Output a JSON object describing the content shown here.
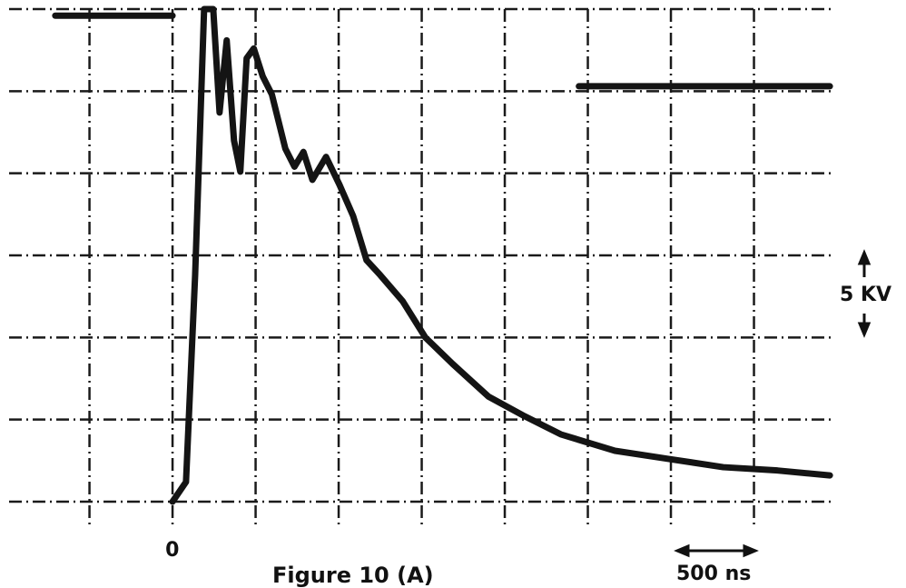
{
  "chart_data": {
    "type": "line",
    "annotations": [
      "5 KV",
      "500 ns"
    ],
    "caption": "Figure 10 (A)",
    "xlim": [
      -984,
      3978
    ],
    "ylim": [
      0,
      30
    ],
    "xticks": [
      0
    ],
    "xgrid": [
      -500,
      0,
      500,
      1000,
      1500,
      2000,
      2500,
      3000,
      3500
    ],
    "ygrid": [
      0,
      5,
      10,
      15,
      20,
      25,
      30
    ],
    "grid": true,
    "series": [
      {
        "color": "#141414",
        "x": [
          0,
          81,
          136,
          190,
          245,
          283,
          326,
          370,
          408,
          446,
          489,
          543,
          598,
          679,
          734,
          788,
          842,
          924,
          1005,
          1087,
          1168,
          1250,
          1386,
          1522,
          1685,
          1902,
          2120,
          2337,
          2663,
          2989,
          3315,
          3641,
          3957
        ],
        "values": [
          0,
          1.2,
          13.8,
          30,
          30,
          23.7,
          28.1,
          22,
          20.1,
          27,
          27.6,
          25.9,
          24.8,
          21.5,
          20.4,
          21.3,
          19.6,
          21,
          19.3,
          17.4,
          14.7,
          13.8,
          12.2,
          10,
          8.4,
          6.4,
          5.2,
          4.1,
          3.1,
          2.6,
          2.1,
          1.9,
          1.6
        ]
      },
      {
        "color": "#141414",
        "x": [
          2446,
          3957
        ],
        "values": [
          25.3,
          25.3
        ]
      },
      {
        "color": "#141414",
        "x": [
          -706,
          0
        ],
        "values": [
          29.6,
          29.6
        ]
      }
    ]
  }
}
